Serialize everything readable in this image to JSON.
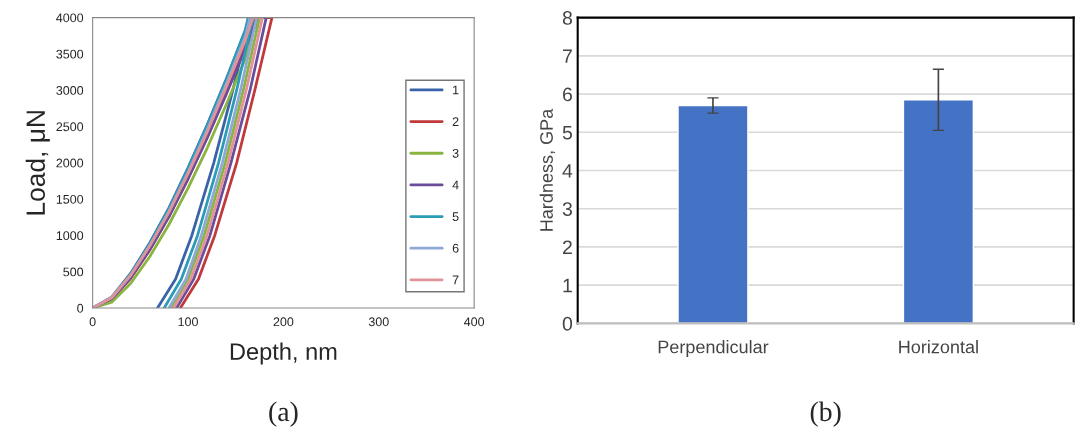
{
  "chart_data": [
    {
      "type": "line",
      "xlabel": "Depth, nm",
      "ylabel": "Load, μN",
      "xlim": [
        0,
        400
      ],
      "ylim": [
        0,
        4000
      ],
      "xticks": [
        0,
        100,
        200,
        300,
        400
      ],
      "yticks": [
        0,
        500,
        1000,
        1500,
        2000,
        2500,
        3000,
        3500,
        4000
      ],
      "grid": false,
      "legend": "right",
      "marker": "none",
      "line_style": "solid",
      "annotations": [
        "(a)"
      ],
      "series": [
        {
          "name": "1",
          "color": "#3a62a8",
          "x": [
            0,
            20,
            40,
            60,
            80,
            100,
            120,
            140,
            160,
            165,
            147,
            127,
            104,
            87,
            68
          ],
          "values": [
            0,
            150,
            480,
            900,
            1380,
            1930,
            2520,
            3150,
            3820,
            4000,
            3000,
            2000,
            1000,
            400,
            0
          ]
        },
        {
          "name": "2",
          "color": "#c0393b",
          "x": [
            0,
            20,
            40,
            60,
            80,
            100,
            120,
            140,
            160,
            175,
            188,
            170,
            151,
            128,
            111,
            92
          ],
          "values": [
            0,
            120,
            410,
            800,
            1260,
            1780,
            2350,
            2960,
            3600,
            4000,
            4000,
            3000,
            2000,
            1000,
            400,
            0
          ]
        },
        {
          "name": "3",
          "color": "#8ab440",
          "x": [
            0,
            20,
            40,
            60,
            80,
            100,
            120,
            140,
            160,
            170,
            175,
            158,
            139,
            117,
            100,
            82
          ],
          "values": [
            0,
            80,
            340,
            710,
            1150,
            1650,
            2200,
            2800,
            3430,
            4000,
            4000,
            3000,
            2000,
            1000,
            400,
            0
          ]
        },
        {
          "name": "4",
          "color": "#6b4c9a",
          "x": [
            0,
            20,
            40,
            60,
            80,
            100,
            120,
            140,
            160,
            172,
            182,
            165,
            145,
            123,
            106,
            88
          ],
          "values": [
            0,
            130,
            420,
            810,
            1260,
            1780,
            2340,
            2940,
            3570,
            4000,
            4000,
            3000,
            2000,
            1000,
            400,
            0
          ]
        },
        {
          "name": "5",
          "color": "#2b9bb6",
          "x": [
            0,
            20,
            40,
            60,
            80,
            100,
            120,
            140,
            160,
            163,
            168,
            151,
            132,
            110,
            93,
            75
          ],
          "values": [
            0,
            150,
            470,
            890,
            1370,
            1920,
            2510,
            3140,
            3830,
            4000,
            4000,
            3000,
            2000,
            1000,
            400,
            0
          ]
        },
        {
          "name": "6",
          "color": "#8fa8d6",
          "x": [
            0,
            20,
            40,
            60,
            80,
            100,
            120,
            140,
            160,
            165,
            172,
            155,
            136,
            114,
            98,
            80
          ],
          "values": [
            0,
            140,
            450,
            860,
            1330,
            1870,
            2450,
            3080,
            3740,
            4000,
            4000,
            3000,
            2000,
            1000,
            400,
            0
          ]
        },
        {
          "name": "7",
          "color": "#e0949a",
          "x": [
            0,
            20,
            40,
            60,
            80,
            100,
            120,
            140,
            160,
            168,
            178,
            161,
            142,
            120,
            103,
            85
          ],
          "values": [
            0,
            145,
            455,
            860,
            1320,
            1850,
            2420,
            3040,
            3690,
            4000,
            4000,
            3000,
            2000,
            1000,
            400,
            0
          ]
        }
      ]
    },
    {
      "type": "bar",
      "ylabel": "Hardness, GPa",
      "categories": [
        "Perpendicular",
        "Horizontal"
      ],
      "values": [
        5.7,
        5.85
      ],
      "errors": [
        0.2,
        0.8
      ],
      "color": "#4472c4",
      "ylim": [
        0,
        8
      ],
      "yticks": [
        0,
        1,
        2,
        3,
        4,
        5,
        6,
        7,
        8
      ],
      "grid": "y",
      "annotations": [
        "(b)"
      ]
    }
  ]
}
